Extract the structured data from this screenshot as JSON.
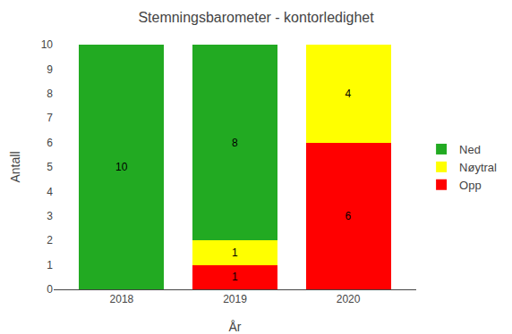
{
  "chart_data": {
    "type": "bar",
    "stacked": true,
    "title": "Stemningsbarometer - kontorledighet",
    "xlabel": "År",
    "ylabel": "Antall",
    "categories": [
      "2018",
      "2019",
      "2020"
    ],
    "series": [
      {
        "name": "Opp",
        "color": "#FF0000",
        "values": [
          0,
          1,
          6
        ]
      },
      {
        "name": "Nøytral",
        "color": "#FFFF00",
        "values": [
          0,
          1,
          4
        ]
      },
      {
        "name": "Ned",
        "color": "#22AA22",
        "values": [
          10,
          8,
          0
        ]
      }
    ],
    "ylim": [
      0,
      10
    ],
    "yticks": [
      0,
      1,
      2,
      3,
      4,
      5,
      6,
      7,
      8,
      9,
      10
    ],
    "grid": false,
    "legend": "right",
    "data_labels": true
  }
}
